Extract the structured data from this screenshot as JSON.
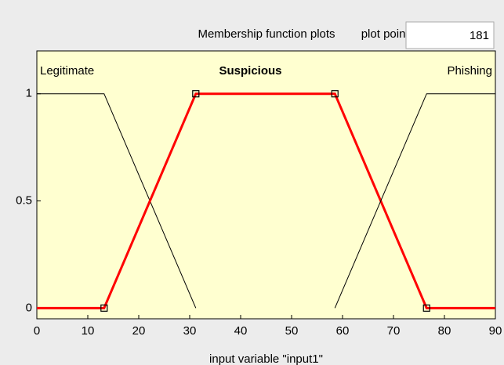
{
  "header": {
    "title": "Membership function plots",
    "plot_points_label": "plot points:",
    "plot_points": 181
  },
  "chart_data": {
    "type": "line",
    "xlabel": "input variable \"input1\"",
    "xlim": [
      0,
      90
    ],
    "xticks": [
      0,
      10,
      20,
      30,
      40,
      50,
      60,
      70,
      80,
      90
    ],
    "ylim": [
      -0.05,
      1.2
    ],
    "yticks": [
      0,
      0.5,
      1
    ],
    "series": [
      {
        "name": "Legitimate",
        "color": "#000000",
        "x": [
          0,
          13.2,
          31.2
        ],
        "values": [
          1,
          1,
          0
        ]
      },
      {
        "name": "Suspicious",
        "color": "#ff0000",
        "x": [
          0,
          13.2,
          31.2,
          58.5,
          76.5,
          90
        ],
        "values": [
          0,
          0,
          1,
          1,
          0,
          0
        ]
      },
      {
        "name": "Phishing",
        "color": "#000000",
        "x": [
          58.5,
          76.5,
          90
        ],
        "values": [
          0,
          1,
          1
        ]
      }
    ]
  }
}
